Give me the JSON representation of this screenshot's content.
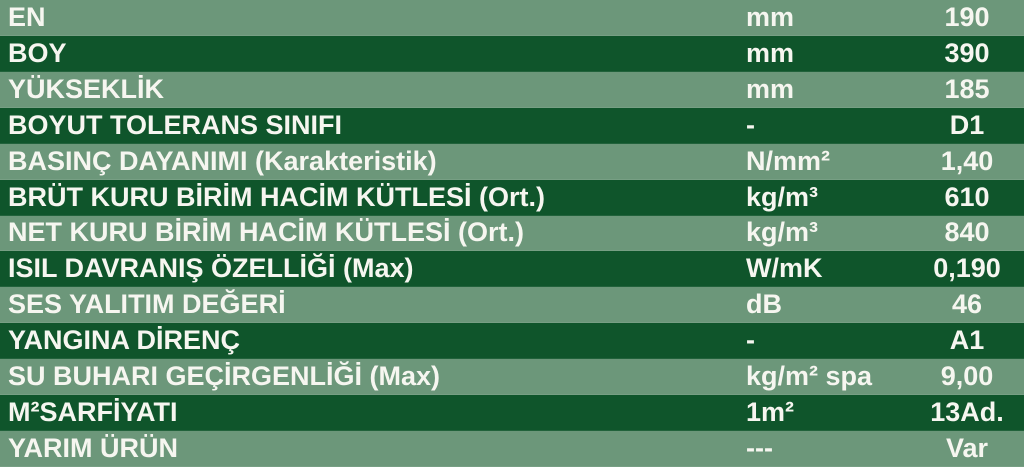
{
  "colors": {
    "light_row": "#6c977a",
    "dark_row": "#0f552b",
    "text": "#f6f6f0"
  },
  "rows": [
    {
      "label": "EN",
      "unit": "mm",
      "value": "190"
    },
    {
      "label": "BOY",
      "unit": "mm",
      "value": "390"
    },
    {
      "label": "YÜKSEKLİK",
      "unit": "mm",
      "value": "185"
    },
    {
      "label": "BOYUT TOLERANS SINIFI",
      "unit": "-",
      "value": "D1"
    },
    {
      "label": "BASINÇ DAYANIMI (Karakteristik)",
      "unit": "N/mm²",
      "value": "1,40"
    },
    {
      "label": "BRÜT KURU BİRİM HACİM KÜTLESİ (Ort.)",
      "unit": "kg/m³",
      "value": "610"
    },
    {
      "label": "NET KURU BİRİM HACİM KÜTLESİ (Ort.)",
      "unit": "kg/m³",
      "value": "840"
    },
    {
      "label": "ISIL DAVRANIŞ ÖZELLİĞİ (Max)",
      "unit": "W/mK",
      "value": "0,190"
    },
    {
      "label": "SES YALITIM DEĞERİ",
      "unit": "dB",
      "value": "46"
    },
    {
      "label": "YANGINA DİRENÇ",
      "unit": "-",
      "value": "A1"
    },
    {
      "label": "SU BUHARI GEÇİRGENLİĞİ (Max)",
      "unit": "kg/m² spa",
      "value": "9,00"
    },
    {
      "label": "M²SARFİYATI",
      "unit": "1m²",
      "value": "13Ad."
    },
    {
      "label": "YARIM ÜRÜN",
      "unit": "---",
      "value": "Var"
    }
  ]
}
